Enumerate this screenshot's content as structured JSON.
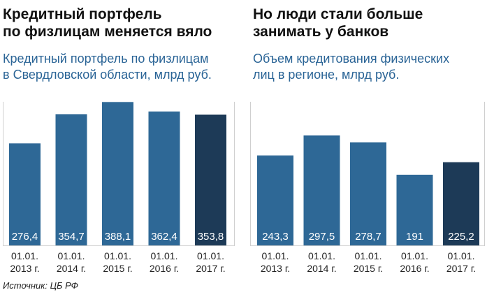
{
  "source": "Источник: ЦБ РФ",
  "colors": {
    "bar": "#2e6896",
    "bar_last": "#1d3a57",
    "title": "#111111",
    "subtitle": "#2a6496",
    "grid": "#cfcfcf"
  },
  "chart_data": [
    {
      "type": "bar",
      "title_lines": [
        "Кредитный портфель",
        "по физлицам меняется вяло"
      ],
      "subtitle_lines": [
        "Кредитный портфель по физлицам",
        "в Свердловской области, млрд руб."
      ],
      "categories": [
        [
          "01.01.",
          "2013 г."
        ],
        [
          "01.01.",
          "2014 г."
        ],
        [
          "01.01.",
          "2015 г."
        ],
        [
          "01.01.",
          "2016 г."
        ],
        [
          "01.01.",
          "2017 г."
        ]
      ],
      "values": [
        276.4,
        354.7,
        388.1,
        362.4,
        353.8
      ],
      "value_labels": [
        "276,4",
        "354,7",
        "388,1",
        "362,4",
        "353,8"
      ],
      "ylim": [
        0,
        1000
      ],
      "xlabel": "",
      "ylabel": ""
    },
    {
      "type": "bar",
      "title_lines": [
        "Но люди стали больше",
        "занимать у банков"
      ],
      "subtitle_lines": [
        "Объем кредитования физических",
        "лиц в регионе, млрд руб."
      ],
      "categories": [
        [
          "01.01.",
          "2013 г."
        ],
        [
          "01.01.",
          "2014 г."
        ],
        [
          "01.01.",
          "2015 г."
        ],
        [
          "01.01.",
          "2016 г."
        ],
        [
          "01.01.",
          "2017 г."
        ]
      ],
      "values": [
        243.3,
        297.5,
        278.7,
        191,
        225.2
      ],
      "value_labels": [
        "243,3",
        "297,5",
        "278,7",
        "191",
        "225,2"
      ],
      "ylim": [
        0,
        1000
      ],
      "xlabel": "",
      "ylabel": ""
    }
  ]
}
